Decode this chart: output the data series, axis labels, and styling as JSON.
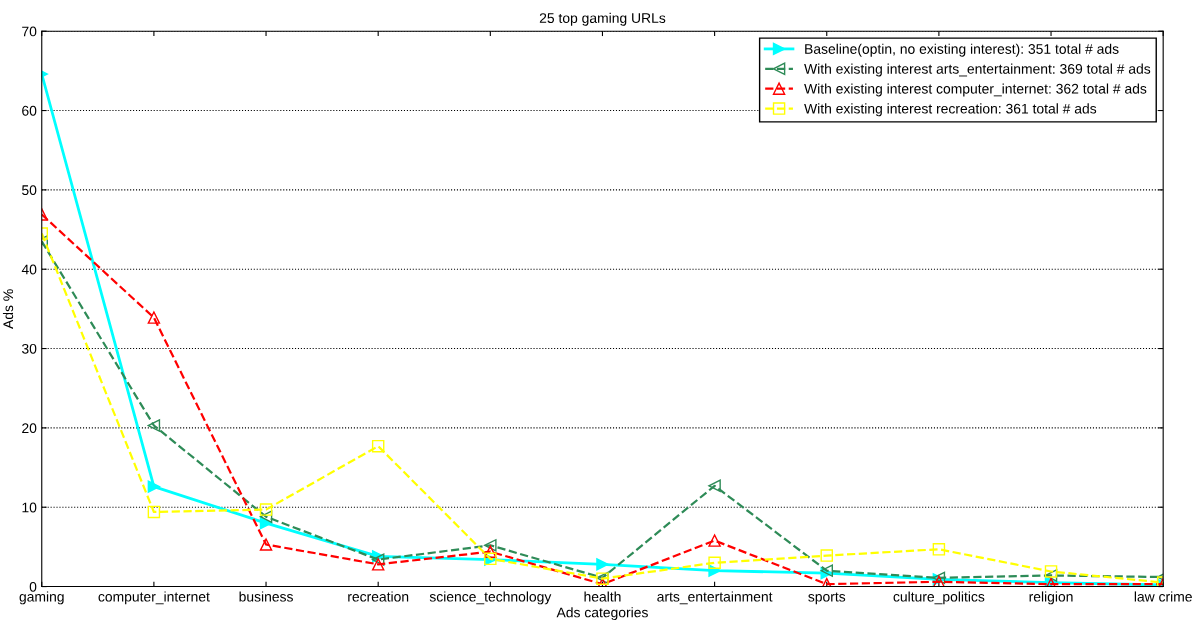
{
  "chart_data": {
    "type": "line",
    "title": "25 top gaming URLs",
    "xlabel": "Ads categories",
    "ylabel": "Ads %",
    "categories": [
      "gaming",
      "computer_internet",
      "business",
      "recreation",
      "science_technology",
      "health",
      "arts_entertainment",
      "sports",
      "culture_politics",
      "religion",
      "law crime"
    ],
    "series": [
      {
        "name": "Baseline(optin, no existing interest): 351 total # ads",
        "color": "#00ffff",
        "marker": "triangle-right",
        "line_style": "solid",
        "values": [
          64.6,
          12.6,
          8.0,
          3.8,
          3.4,
          2.8,
          2.0,
          1.7,
          0.9,
          0.5,
          0.2
        ]
      },
      {
        "name": "With existing interest arts_entertainment: 369 total # ads",
        "color": "#2e8b57",
        "marker": "triangle-left",
        "line_style": "dashed",
        "values": [
          43.5,
          20.3,
          8.8,
          3.4,
          5.2,
          1.1,
          12.7,
          2.0,
          1.1,
          1.4,
          1.2
        ]
      },
      {
        "name": "With existing interest computer_internet: 362 total # ads",
        "color": "#ff0000",
        "marker": "triangle",
        "line_style": "dashed",
        "values": [
          46.9,
          33.9,
          5.3,
          2.8,
          4.4,
          0.3,
          5.8,
          0.3,
          0.6,
          0.3,
          0.3
        ]
      },
      {
        "name": "With existing interest recreation: 361 total # ads",
        "color": "#ffff00",
        "marker": "square",
        "line_style": "dashed",
        "values": [
          44.5,
          9.4,
          9.7,
          17.7,
          3.5,
          1.0,
          3.0,
          3.9,
          4.7,
          1.9,
          0.5
        ]
      }
    ],
    "ylim": [
      0,
      70
    ],
    "yticks": [
      0,
      10,
      20,
      30,
      40,
      50,
      60,
      70
    ],
    "grid": "y",
    "legend": "top right"
  }
}
